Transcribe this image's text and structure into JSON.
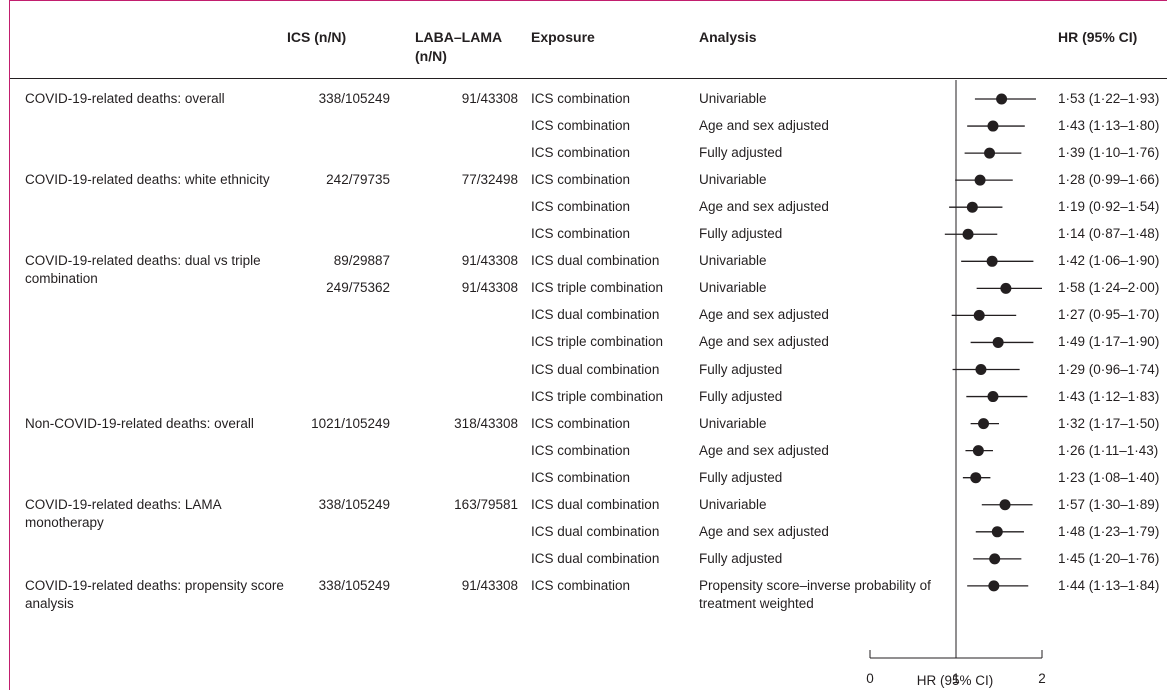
{
  "headers": {
    "outcome": "",
    "ics": "ICS (n/N)",
    "laba_lama": "LABA–LAMA (n/N)",
    "exposure": "Exposure",
    "analysis": "Analysis",
    "hr": "HR (95% CI)"
  },
  "axis": {
    "label": "HR (95% CI)",
    "ticks": [
      "0",
      "1",
      "2"
    ]
  },
  "groups": [
    {
      "outcome": "COVID-19-related deaths: overall",
      "ics": [
        "338/105249"
      ],
      "lama": [
        "91/43308"
      ]
    },
    {
      "outcome": "COVID-19-related deaths: white ethnicity",
      "ics": [
        "242/79735"
      ],
      "lama": [
        "77/32498"
      ]
    },
    {
      "outcome": "COVID-19-related deaths: dual vs triple combination",
      "ics": [
        "89/29887",
        "249/75362"
      ],
      "lama": [
        "91/43308",
        "91/43308"
      ]
    },
    {
      "outcome": "Non-COVID-19-related deaths: overall",
      "ics": [
        "1021/105249"
      ],
      "lama": [
        "318/43308"
      ]
    },
    {
      "outcome": "COVID-19-related deaths: LAMA monotherapy",
      "ics": [
        "338/105249"
      ],
      "lama": [
        "163/79581"
      ]
    },
    {
      "outcome": "COVID-19-related deaths: propensity score analysis",
      "ics": [
        "338/105249"
      ],
      "lama": [
        "91/43308"
      ]
    }
  ],
  "chart_data": {
    "type": "forest",
    "xlabel": "HR (95% CI)",
    "xlim": [
      0,
      2
    ],
    "reference_line": 1,
    "rows": [
      {
        "exposure": "ICS combination",
        "analysis": "Univariable",
        "hr": 1.53,
        "lo": 1.22,
        "hi": 1.93,
        "label": "1·53 (1·22–1·93)"
      },
      {
        "exposure": "ICS combination",
        "analysis": "Age and sex adjusted",
        "hr": 1.43,
        "lo": 1.13,
        "hi": 1.8,
        "label": "1·43 (1·13–1·80)"
      },
      {
        "exposure": "ICS combination",
        "analysis": "Fully adjusted",
        "hr": 1.39,
        "lo": 1.1,
        "hi": 1.76,
        "label": "1·39 (1·10–1·76)"
      },
      {
        "exposure": "ICS combination",
        "analysis": "Univariable",
        "hr": 1.28,
        "lo": 0.99,
        "hi": 1.66,
        "label": "1·28 (0·99–1·66)"
      },
      {
        "exposure": "ICS combination",
        "analysis": "Age and sex adjusted",
        "hr": 1.19,
        "lo": 0.92,
        "hi": 1.54,
        "label": "1·19 (0·92–1·54)"
      },
      {
        "exposure": "ICS combination",
        "analysis": "Fully adjusted",
        "hr": 1.14,
        "lo": 0.87,
        "hi": 1.48,
        "label": "1·14 (0·87–1·48)"
      },
      {
        "exposure": "ICS dual combination",
        "analysis": "Univariable",
        "hr": 1.42,
        "lo": 1.06,
        "hi": 1.9,
        "label": "1·42 (1·06–1·90)"
      },
      {
        "exposure": "ICS triple combination",
        "analysis": "Univariable",
        "hr": 1.58,
        "lo": 1.24,
        "hi": 2.0,
        "label": "1·58 (1·24–2·00)"
      },
      {
        "exposure": "ICS dual combination",
        "analysis": "Age and sex adjusted",
        "hr": 1.27,
        "lo": 0.95,
        "hi": 1.7,
        "label": "1·27 (0·95–1·70)"
      },
      {
        "exposure": "ICS triple combination",
        "analysis": "Age and sex adjusted",
        "hr": 1.49,
        "lo": 1.17,
        "hi": 1.9,
        "label": "1·49 (1·17–1·90)"
      },
      {
        "exposure": "ICS dual combination",
        "analysis": "Fully adjusted",
        "hr": 1.29,
        "lo": 0.96,
        "hi": 1.74,
        "label": "1·29 (0·96–1·74)"
      },
      {
        "exposure": "ICS triple combination",
        "analysis": "Fully adjusted",
        "hr": 1.43,
        "lo": 1.12,
        "hi": 1.83,
        "label": "1·43 (1·12–1·83)"
      },
      {
        "exposure": "ICS combination",
        "analysis": "Univariable",
        "hr": 1.32,
        "lo": 1.17,
        "hi": 1.5,
        "label": "1·32 (1·17–1·50)"
      },
      {
        "exposure": "ICS combination",
        "analysis": "Age and sex adjusted",
        "hr": 1.26,
        "lo": 1.11,
        "hi": 1.43,
        "label": "1·26 (1·11–1·43)"
      },
      {
        "exposure": "ICS combination",
        "analysis": "Fully adjusted",
        "hr": 1.23,
        "lo": 1.08,
        "hi": 1.4,
        "label": "1·23 (1·08–1·40)"
      },
      {
        "exposure": "ICS dual combination",
        "analysis": "Univariable",
        "hr": 1.57,
        "lo": 1.3,
        "hi": 1.89,
        "label": "1·57 (1·30–1·89)"
      },
      {
        "exposure": "ICS dual combination",
        "analysis": "Age and sex adjusted",
        "hr": 1.48,
        "lo": 1.23,
        "hi": 1.79,
        "label": "1·48 (1·23–1·79)"
      },
      {
        "exposure": "ICS dual combination",
        "analysis": "Fully adjusted",
        "hr": 1.45,
        "lo": 1.2,
        "hi": 1.76,
        "label": "1·45 (1·20–1·76)"
      },
      {
        "exposure": "ICS combination",
        "analysis": "Propensity score–inverse probability of treatment weighted",
        "hr": 1.44,
        "lo": 1.13,
        "hi": 1.84,
        "label": "1·44 (1·13–1·84)"
      }
    ]
  }
}
